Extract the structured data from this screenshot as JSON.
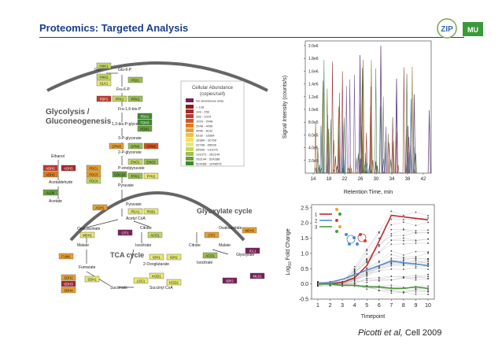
{
  "header": {
    "title": "Proteomics: Targeted Analysis",
    "logos": {
      "zip": "ZIP",
      "mu": "MU"
    }
  },
  "pathway": {
    "legend_title_1": "Cellular Abundance",
    "legend_title_2": "(copies/cell)",
    "legend_nodata": "No abundance data",
    "legend_bins": [
      "< 128",
      "128 - 256",
      "256 - 1024",
      "1024 - 2048",
      "2048 - 4096",
      "4096 - 8192",
      "8192 - 16384",
      "16384 - 32768",
      "32768 - 65536",
      "65536 - 131072",
      "131072 - 262144",
      "262144 - 524288",
      "524288 - 1048576"
    ],
    "legend_colors": [
      "#8b1a1a",
      "#a52a2a",
      "#c0392b",
      "#d9531e",
      "#e07b20",
      "#e8a030",
      "#f0c040",
      "#f5e060",
      "#e8e870",
      "#c8d860",
      "#9cc050",
      "#6aa040",
      "#3d8a30"
    ],
    "section_glycolysis_1": "Glycolysis /",
    "section_glycolysis_2": "Gluconeogenesis",
    "section_tca": "TCA cycle",
    "section_glyoxylate": "Glyoxylate cycle",
    "metabolites": [
      "Glu",
      "Glu-6-P",
      "Fru-6-P",
      "Fru-1,6-bis-P",
      "1,3-bis-P-glycerate",
      "3-P-glycerate",
      "2-P-glycerate",
      "P-enolpyruvate",
      "Pyruvate",
      "Ethanol",
      "Acetaldehyde",
      "Acetate",
      "Pyruvate",
      "Acetyl CoA",
      "Oxaloacetate",
      "Citrate",
      "Malate",
      "Isocitrate",
      "Fumarate",
      "2-Oxoglutarate",
      "Succinate",
      "Succinyl CoA",
      "Oxaloacetate",
      "Malate",
      "Citrate",
      "Isocitrate",
      "Glyoxylate"
    ],
    "enzymes": [
      "HXK1",
      "HXK2",
      "GLK1",
      "PGI1",
      "PFK1",
      "PFK2",
      "FBP1",
      "FBA1",
      "TDH3",
      "PGK1",
      "GPM3",
      "GPM1",
      "GPM2",
      "ENO1",
      "ENO2",
      "PYK1",
      "PYK2",
      "CDC19",
      "ADH1",
      "ADH2",
      "ADH5",
      "PDC1",
      "PDC5",
      "PDC6",
      "ALD6",
      "ACH1",
      "PDA1",
      "PDB1",
      "MDH1",
      "CIT1",
      "ACO1",
      "IDH1",
      "IDH2",
      "KGD1",
      "KGD2",
      "LSC1",
      "SDH1",
      "SDH2",
      "SDH3",
      "SDH4",
      "FUM1",
      "MDH2",
      "CIT2",
      "ACO1",
      "ICL1",
      "IDP2",
      "MLS1"
    ]
  },
  "chromatogram": {
    "ylabel": "Signal Intensity (counts/s)",
    "xlabel": "Retention Time, min",
    "yticks": [
      "2.0e5",
      "4.0e5",
      "6.0e5",
      "8.0e5",
      "1.0e6",
      "1.2e6",
      "1.4e6",
      "1.6e6",
      "1.8e6",
      "2.0e6"
    ],
    "xticks": [
      "14",
      "18",
      "22",
      "26",
      "30",
      "34",
      "38",
      "42"
    ]
  },
  "timecourse": {
    "ylabel": "Log10 Fold Change",
    "ylabel_main": "Log",
    "ylabel_sub": "10",
    "ylabel_rest": " Fold Change",
    "xlabel": "Timepoint",
    "xticks": [
      "1",
      "2",
      "3",
      "4",
      "5",
      "6",
      "7",
      "8",
      "9",
      "10"
    ],
    "yticks": [
      "-0.5",
      "0.0",
      "0.5",
      "1.0",
      "1.5",
      "2.0",
      "2.5"
    ],
    "legend": [
      "1",
      "2",
      "3"
    ],
    "legend_colors": [
      "#c0262d",
      "#4f8fd0",
      "#4a9a3a"
    ]
  },
  "chart_data": {
    "type": "line",
    "x": [
      1,
      2,
      3,
      4,
      5,
      6,
      7,
      8,
      9,
      10
    ],
    "ylim": [
      -0.5,
      2.6
    ],
    "xlabel": "Timepoint",
    "ylabel": "Log10 Fold Change",
    "series": [
      {
        "name": "1",
        "values": [
          0.0,
          0.0,
          0.05,
          0.2,
          0.6,
          1.4,
          2.25,
          2.2,
          2.15,
          2.1
        ]
      },
      {
        "name": "2",
        "values": [
          0.0,
          0.05,
          0.15,
          0.3,
          0.45,
          0.6,
          0.75,
          0.7,
          0.65,
          0.6
        ]
      },
      {
        "name": "3",
        "values": [
          0.0,
          0.0,
          -0.05,
          -0.05,
          -0.1,
          -0.1,
          -0.15,
          -0.15,
          -0.1,
          -0.15
        ]
      }
    ]
  },
  "citation": {
    "authors": "Picotti et al,",
    "rest": " Cell 2009"
  }
}
